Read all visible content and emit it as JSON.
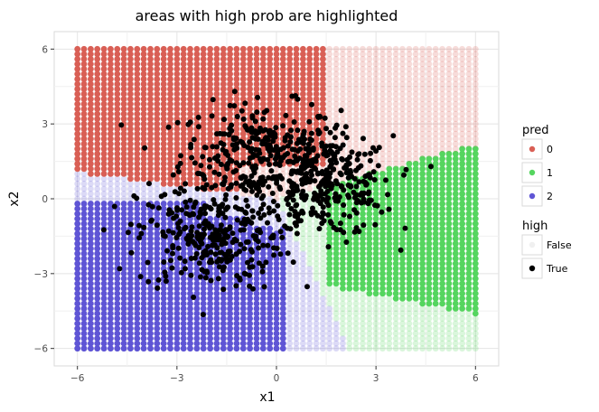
{
  "chart_data": {
    "type": "scatter",
    "title": "areas with high prob are highlighted",
    "xlabel": "x1",
    "ylabel": "x2",
    "xlim": [
      -6.7,
      6.7
    ],
    "ylim": [
      -6.7,
      6.7
    ],
    "x_ticks": [
      -6,
      -3,
      0,
      3,
      6
    ],
    "x_tick_labels": [
      "−6",
      "−3",
      "0",
      "3",
      "6"
    ],
    "y_ticks": [
      -6,
      -3,
      0,
      3,
      6
    ],
    "y_tick_labels": [
      "−6",
      "−3",
      "0",
      "3",
      "6"
    ],
    "grid": true,
    "legend_position": "right",
    "background_points": {
      "description_of_grid": "uniform grid over [-6,6] x [-6,6], each point colored by predicted class, opaque where high is True",
      "x_range": [
        -6,
        6
      ],
      "y_range": [
        -6,
        6
      ]
    },
    "regions": [
      {
        "pred": "0",
        "high": true,
        "rule": "upper-left, x1 < 1.5, x2 > 1.5"
      },
      {
        "pred": "0",
        "high": false,
        "rule": "upper band toward x1 ≈ 4"
      },
      {
        "pred": "1",
        "high": true,
        "rule": "right, x1 > 1.5, |x2| < 4"
      },
      {
        "pred": "1",
        "high": false,
        "rule": "right edges"
      },
      {
        "pred": "2",
        "high": true,
        "rule": "lower-left, x1 < 0.5, x2 < 0"
      },
      {
        "pred": "2",
        "high": false,
        "rule": "lower band toward x1 ≈ 3"
      }
    ],
    "observed_points": {
      "color": "#000000",
      "clusters": [
        {
          "center": [
            -0.5,
            1.8
          ],
          "spread": [
            1.2,
            1.0
          ]
        },
        {
          "center": [
            1.5,
            0.5
          ],
          "spread": [
            1.0,
            1.0
          ]
        },
        {
          "center": [
            -2.0,
            -1.5
          ],
          "spread": [
            1.1,
            1.1
          ]
        }
      ],
      "approx_count": 900
    },
    "legends": [
      {
        "title": "pred",
        "entries": [
          {
            "label": "0",
            "color": "#d95f55"
          },
          {
            "label": "1",
            "color": "#55d55f"
          },
          {
            "label": "2",
            "color": "#5f55d5"
          }
        ]
      },
      {
        "title": "high",
        "entries": [
          {
            "label": "False",
            "color": "#d9d9d9",
            "alpha": 0.4
          },
          {
            "label": "True",
            "color": "#000000",
            "alpha": 1.0
          }
        ]
      }
    ]
  }
}
